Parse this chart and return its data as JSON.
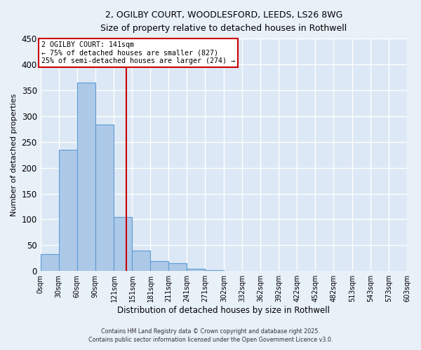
{
  "title_line1": "2, OGILBY COURT, WOODLESFORD, LEEDS, LS26 8WG",
  "title_line2": "Size of property relative to detached houses in Rothwell",
  "xlabel": "Distribution of detached houses by size in Rothwell",
  "ylabel": "Number of detached properties",
  "bin_edges": [
    0,
    30,
    60,
    90,
    121,
    151,
    181,
    211,
    241,
    271,
    302,
    332,
    362,
    392,
    422,
    452,
    482,
    513,
    543,
    573,
    603
  ],
  "bar_heights": [
    33,
    235,
    365,
    283,
    105,
    40,
    19,
    15,
    5,
    2,
    0,
    0,
    0,
    0,
    0,
    0,
    0,
    0,
    0,
    0
  ],
  "bar_color": "#adc9e8",
  "bar_edge_color": "#5b9bd5",
  "vline_x": 141,
  "vline_color": "#cc0000",
  "ylim": [
    0,
    450
  ],
  "yticks": [
    0,
    50,
    100,
    150,
    200,
    250,
    300,
    350,
    400,
    450
  ],
  "xtick_labels": [
    "0sqm",
    "30sqm",
    "60sqm",
    "90sqm",
    "121sqm",
    "151sqm",
    "181sqm",
    "211sqm",
    "241sqm",
    "271sqm",
    "302sqm",
    "332sqm",
    "362sqm",
    "392sqm",
    "422sqm",
    "452sqm",
    "482sqm",
    "513sqm",
    "543sqm",
    "573sqm",
    "603sqm"
  ],
  "annotation_title": "2 OGILBY COURT: 141sqm",
  "annotation_line2": "← 75% of detached houses are smaller (827)",
  "annotation_line3": "25% of semi-detached houses are larger (274) →",
  "annotation_box_color": "#ffffff",
  "annotation_box_edge_color": "#cc0000",
  "bg_color": "#e8f0f8",
  "plot_bg_color": "#dce8f5",
  "grid_color": "#ffffff",
  "footer_line1": "Contains HM Land Registry data © Crown copyright and database right 2025.",
  "footer_line2": "Contains public sector information licensed under the Open Government Licence v3.0."
}
